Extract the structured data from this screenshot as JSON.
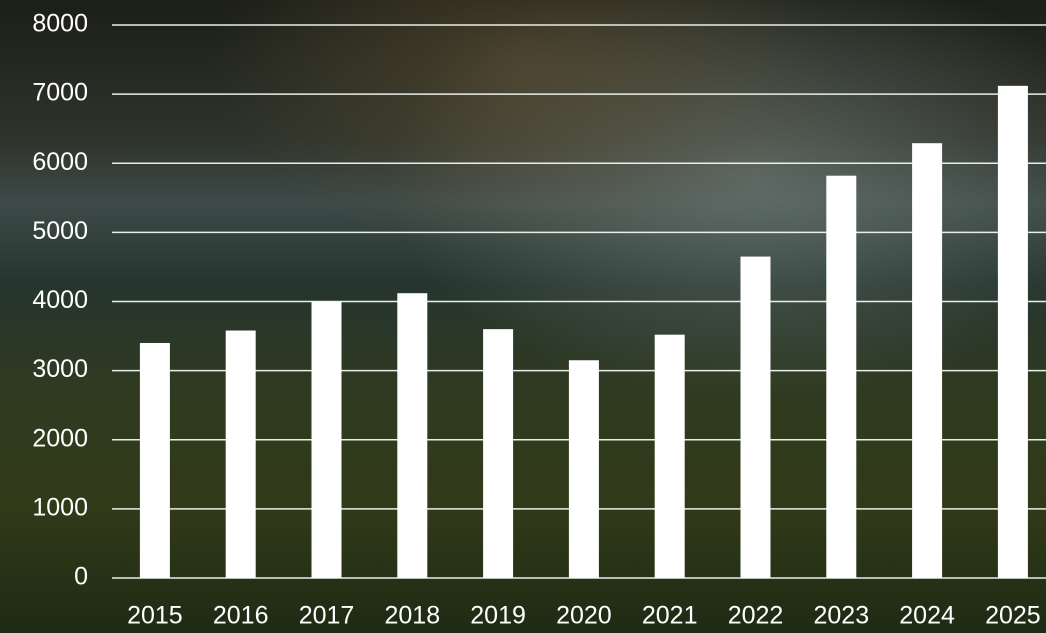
{
  "chart_data": {
    "type": "bar",
    "categories": [
      "2015",
      "2016",
      "2017",
      "2018",
      "2019",
      "2020",
      "2021",
      "2022",
      "2023",
      "2024",
      "2025"
    ],
    "values": [
      3400,
      3580,
      4000,
      4120,
      3600,
      3150,
      3520,
      4650,
      5820,
      6290,
      7120
    ],
    "color": "#ffffff",
    "ylim": [
      0,
      8000
    ],
    "yticks": [
      0,
      1000,
      2000,
      3000,
      4000,
      5000,
      6000,
      7000,
      8000
    ],
    "grid": true
  }
}
